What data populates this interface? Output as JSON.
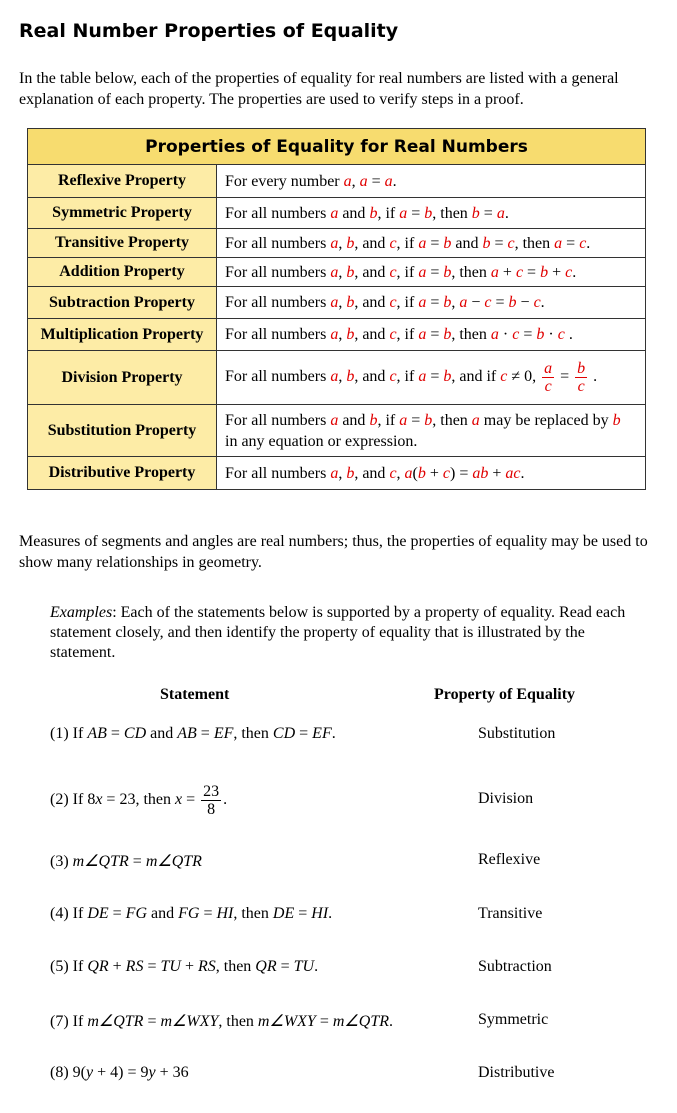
{
  "title": "Real Number Properties of Equality",
  "intro": "In the table below, each of the properties of equality for real numbers are listed with a general explanation of each property.  The properties are used to verify steps in a proof.",
  "colors": {
    "header_bg": "#f7dc6f",
    "name_cell_bg": "#fdeca6",
    "variable": "#e00000"
  },
  "table": {
    "header": "Properties of Equality for Real Numbers",
    "rows": [
      {
        "name": "Reflexive Property",
        "desc": [
          "For every number ",
          {
            "v": "a"
          },
          ", ",
          {
            "v": "a"
          },
          " = ",
          {
            "v": "a"
          },
          "."
        ]
      },
      {
        "name": "Symmetric Property",
        "desc": [
          "For all numbers ",
          {
            "v": "a"
          },
          " and ",
          {
            "v": "b"
          },
          ", if ",
          {
            "v": "a"
          },
          " = ",
          {
            "v": "b"
          },
          ", then ",
          {
            "v": "b"
          },
          " = ",
          {
            "v": "a"
          },
          "."
        ]
      },
      {
        "name": "Transitive Property",
        "desc": [
          "For all numbers ",
          {
            "v": "a"
          },
          ", ",
          {
            "v": "b"
          },
          ", and ",
          {
            "v": "c"
          },
          ", if ",
          {
            "v": "a"
          },
          " = ",
          {
            "v": "b"
          },
          " and ",
          {
            "v": "b"
          },
          " = ",
          {
            "v": "c"
          },
          ", then ",
          {
            "v": "a"
          },
          " = ",
          {
            "v": "c"
          },
          "."
        ]
      },
      {
        "name": "Addition Property",
        "desc": [
          "For all numbers ",
          {
            "v": "a"
          },
          ", ",
          {
            "v": "b"
          },
          ", and ",
          {
            "v": "c"
          },
          ", if ",
          {
            "v": "a"
          },
          " = ",
          {
            "v": "b"
          },
          ", then ",
          {
            "v": "a"
          },
          " + ",
          {
            "v": "c"
          },
          " = ",
          {
            "v": "b"
          },
          " + ",
          {
            "v": "c"
          },
          "."
        ]
      },
      {
        "name": "Subtraction Property",
        "desc": [
          "For all numbers ",
          {
            "v": "a"
          },
          ", ",
          {
            "v": "b"
          },
          ", and ",
          {
            "v": "c"
          },
          ", if ",
          {
            "v": "a"
          },
          " = ",
          {
            "v": "b"
          },
          ", ",
          {
            "v": "a"
          },
          " − ",
          {
            "v": "c"
          },
          " = ",
          {
            "v": "b"
          },
          " − ",
          {
            "v": "c"
          },
          "."
        ]
      },
      {
        "name": "Multiplication Property",
        "desc": [
          "For all numbers ",
          {
            "v": "a"
          },
          ", ",
          {
            "v": "b"
          },
          ", and ",
          {
            "v": "c"
          },
          ", if ",
          {
            "v": "a"
          },
          " = ",
          {
            "v": "b"
          },
          ", then  ",
          {
            "v": "a"
          },
          " · ",
          {
            "v": "c"
          },
          " = ",
          {
            "v": "b"
          },
          " · ",
          {
            "v": "c"
          },
          " ."
        ]
      },
      {
        "name": "Division Property",
        "desc": [
          "For all numbers ",
          {
            "v": "a"
          },
          ", ",
          {
            "v": "b"
          },
          ", and ",
          {
            "v": "c"
          },
          ", if ",
          {
            "v": "a"
          },
          " = ",
          {
            "v": "b"
          },
          ", and if ",
          {
            "v": "c"
          },
          " ≠ 0, ",
          {
            "f": [
              "a",
              "c"
            ],
            "red": true
          },
          " = ",
          {
            "f": [
              "b",
              "c"
            ],
            "red": true
          },
          " ."
        ]
      },
      {
        "name": "Substitution Property",
        "desc": [
          "For all numbers ",
          {
            "v": "a"
          },
          " and ",
          {
            "v": "b"
          },
          ", if ",
          {
            "v": "a"
          },
          " = ",
          {
            "v": "b"
          },
          ", then ",
          {
            "v": "a"
          },
          " may be replaced by ",
          {
            "v": "b"
          },
          " in any equation or expression."
        ]
      },
      {
        "name": "Distributive Property",
        "desc": [
          "For all numbers ",
          {
            "v": "a"
          },
          ", ",
          {
            "v": "b"
          },
          ", and ",
          {
            "v": "c"
          },
          ", ",
          {
            "v": "a"
          },
          "(",
          {
            "v": "b"
          },
          " + ",
          {
            "v": "c"
          },
          ") = ",
          {
            "v": "ab"
          },
          " + ",
          {
            "v": "ac"
          },
          "."
        ]
      }
    ]
  },
  "measures": "Measures of segments and angles are real numbers; thus, the properties of equality may be used to show many relationships in geometry.",
  "examples": {
    "label": "Examples",
    "text": ":  Each of the statements below is supported by a property of equality. Read each statement closely, and then identify the property of equality that is illustrated by the statement.",
    "col_statement": "Statement",
    "col_property": "Property of Equality",
    "items": [
      {
        "stmt": [
          "(1) If ",
          {
            "i": "AB"
          },
          " = ",
          {
            "i": "CD"
          },
          " and ",
          {
            "i": "AB"
          },
          " = ",
          {
            "i": "EF"
          },
          ", then ",
          {
            "i": "CD"
          },
          " = ",
          {
            "i": "EF"
          },
          "."
        ],
        "prop": "Substitution"
      },
      {
        "stmt": [
          "(2) If 8",
          {
            "i": "x"
          },
          " = 23,  then ",
          {
            "i": "x"
          },
          " = ",
          {
            "f": [
              "23",
              "8"
            ]
          },
          "."
        ],
        "prop": "Division"
      },
      {
        "stmt": [
          "(3) ",
          {
            "i": "m∠QTR"
          },
          " = ",
          {
            "i": "m∠QTR"
          }
        ],
        "prop": "Reflexive"
      },
      {
        "stmt": [
          "(4) If ",
          {
            "i": "DE"
          },
          " = ",
          {
            "i": "FG"
          },
          " and ",
          {
            "i": "FG"
          },
          " = ",
          {
            "i": "HI"
          },
          ", then ",
          {
            "i": "DE"
          },
          " = ",
          {
            "i": "HI"
          },
          "."
        ],
        "prop": "Transitive"
      },
      {
        "stmt": [
          "(5) If ",
          {
            "i": "QR"
          },
          " + ",
          {
            "i": "RS"
          },
          " = ",
          {
            "i": "TU"
          },
          " + ",
          {
            "i": "RS"
          },
          ", then ",
          {
            "i": "QR"
          },
          " = ",
          {
            "i": "TU"
          },
          "."
        ],
        "prop": "Subtraction"
      },
      {
        "stmt": [
          "(7) If ",
          {
            "i": "m∠QTR"
          },
          " = ",
          {
            "i": "m∠WXY"
          },
          ", then ",
          {
            "i": "m∠WXY"
          },
          " = ",
          {
            "i": "m∠QTR"
          },
          "."
        ],
        "prop": "Symmetric"
      },
      {
        "stmt": [
          "(8) 9(",
          {
            "i": "y"
          },
          " + 4) = 9",
          {
            "i": "y"
          },
          " + 36"
        ],
        "prop": "Distributive"
      }
    ]
  }
}
